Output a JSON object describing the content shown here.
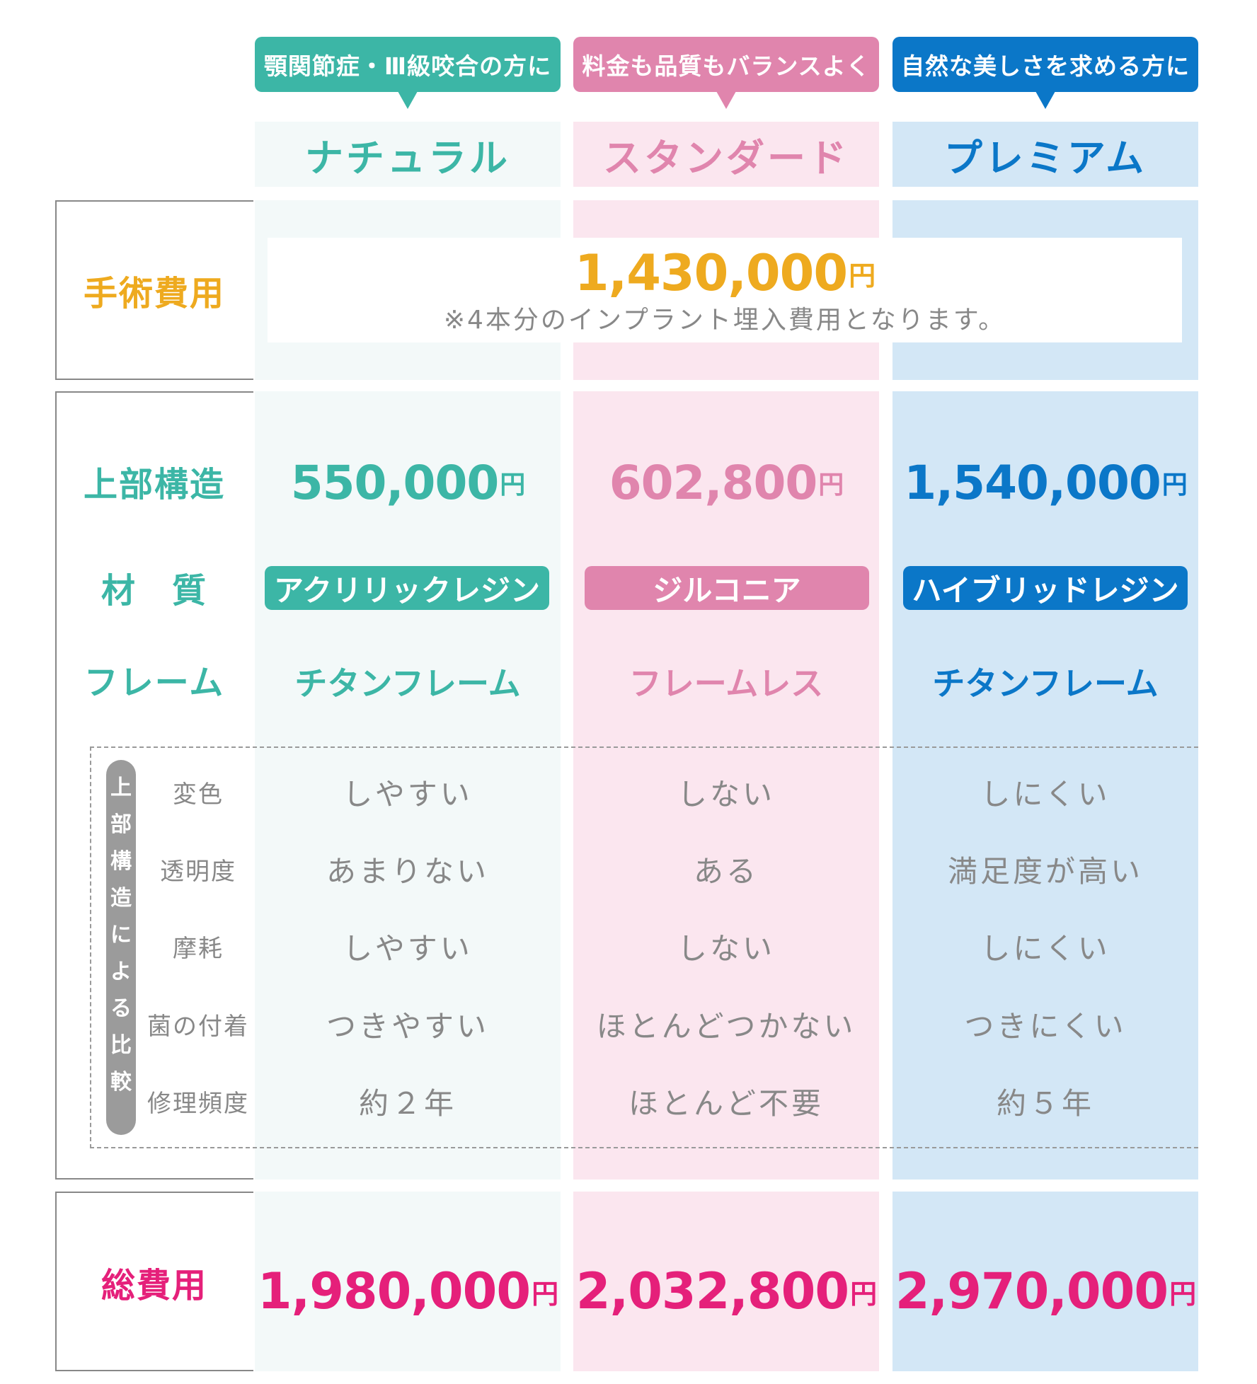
{
  "plans": [
    {
      "id": "natural",
      "bubble": "顎関節症・Ⅲ級咬合の方に",
      "name": "ナチュラル",
      "upper_price": "550,000",
      "material": "アクリリックレジン",
      "frame": "チタンフレーム",
      "total": "1,980,000",
      "color": "#3cb6a6",
      "bg": "#f3f9f9"
    },
    {
      "id": "standard",
      "bubble": "料金も品質もバランスよく",
      "name": "スタンダード",
      "upper_price": "602,800",
      "material": "ジルコニア",
      "frame": "フレームレス",
      "total": "2,032,800",
      "color": "#e085ad",
      "bg": "#fbe6ef"
    },
    {
      "id": "premium",
      "bubble": "自然な美しさを求める方に",
      "name": "プレミアム",
      "upper_price": "1,540,000",
      "material": "ハイブリッドレジン",
      "frame": "チタンフレーム",
      "total": "2,970,000",
      "color": "#0b77c8",
      "bg": "#d3e7f6"
    }
  ],
  "yen": "円",
  "surgery": {
    "label": "手術費用",
    "price": "1,430,000",
    "note": "※4本分のインプラント埋入費用となります。",
    "color": "#eeaa1f"
  },
  "rows": {
    "upper": "上部構造",
    "material": "材　質",
    "frame": "フレーム",
    "total": "総費用"
  },
  "comparison": {
    "side_label": [
      "上",
      "部",
      "構",
      "造",
      "に",
      "よ",
      "る",
      "比",
      "較"
    ],
    "items": [
      {
        "label": "変色",
        "values": [
          "しやすい",
          "しない",
          "しにくい"
        ]
      },
      {
        "label": "透明度",
        "values": [
          "あまりない",
          "ある",
          "満足度が高い"
        ]
      },
      {
        "label": "摩耗",
        "values": [
          "しやすい",
          "しない",
          "しにくい"
        ]
      },
      {
        "label": "菌の付着",
        "values": [
          "つきやすい",
          "ほとんどつかない",
          "つきにくい"
        ]
      },
      {
        "label": "修理頻度",
        "values": [
          "約２年",
          "ほとんど不要",
          "約５年"
        ]
      }
    ]
  },
  "colors": {
    "teal": "#3cb6a6",
    "pink": "#e085ad",
    "blue": "#0b77c8",
    "gold": "#eeaa1f",
    "magenta": "#e5207a",
    "gray_text": "#888888",
    "label_gray": "#9b9b9b"
  }
}
